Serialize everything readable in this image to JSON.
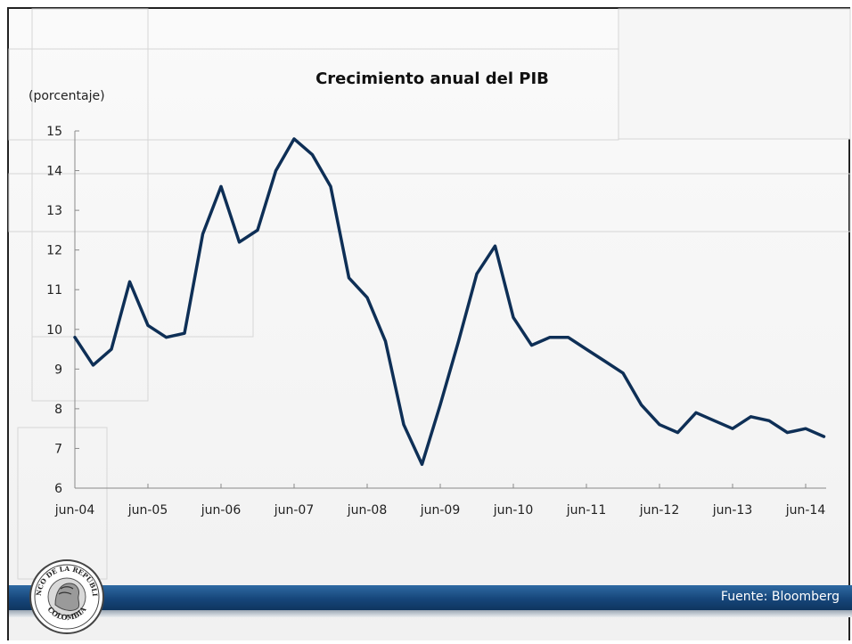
{
  "slide": {
    "title": "Crecimiento anual del PIB",
    "units_label": "(porcentaje)",
    "source": "Fuente: Bloomberg",
    "logo_text_top": "BANCO DE LA REPÚBLICA",
    "logo_text_bottom": "COLOMBIA"
  },
  "chart_data": {
    "type": "line",
    "title": "Crecimiento anual del PIB",
    "ylabel": "(porcentaje)",
    "xlabel": "",
    "ylim": [
      6,
      15
    ],
    "y_ticks": [
      6,
      7,
      8,
      9,
      10,
      11,
      12,
      13,
      14,
      15
    ],
    "x_tick_labels": [
      "jun-04",
      "jun-05",
      "jun-06",
      "jun-07",
      "jun-08",
      "jun-09",
      "jun-10",
      "jun-11",
      "jun-12",
      "jun-13",
      "jun-14"
    ],
    "grid": false,
    "line_color": "#0e2f56",
    "series": [
      {
        "x": [
          "jun-04",
          "sep-04",
          "dic-04",
          "mar-05",
          "jun-05",
          "sep-05",
          "dic-05",
          "mar-06",
          "jun-06",
          "sep-06",
          "dic-06",
          "mar-07",
          "jun-07",
          "sep-07",
          "dic-07",
          "mar-08",
          "jun-08",
          "sep-08",
          "dic-08",
          "mar-09",
          "jun-09",
          "sep-09",
          "dic-09",
          "mar-10",
          "jun-10",
          "sep-10",
          "dic-10",
          "mar-11",
          "jun-11",
          "sep-11",
          "dic-11",
          "mar-12",
          "jun-12",
          "sep-12",
          "dic-12",
          "mar-13",
          "jun-13",
          "sep-13",
          "dic-13",
          "mar-14",
          "jun-14",
          "sep-14"
        ],
        "values": [
          9.8,
          9.1,
          9.5,
          11.2,
          10.1,
          9.8,
          9.9,
          12.4,
          13.6,
          12.2,
          12.5,
          14.0,
          14.8,
          14.4,
          13.6,
          11.3,
          10.8,
          9.7,
          7.6,
          6.6,
          8.1,
          9.7,
          11.4,
          12.1,
          10.3,
          9.6,
          9.8,
          9.8,
          9.5,
          9.2,
          8.9,
          8.1,
          7.6,
          7.4,
          7.9,
          7.7,
          7.5,
          7.8,
          7.7,
          7.4,
          7.5,
          7.3
        ]
      }
    ]
  }
}
